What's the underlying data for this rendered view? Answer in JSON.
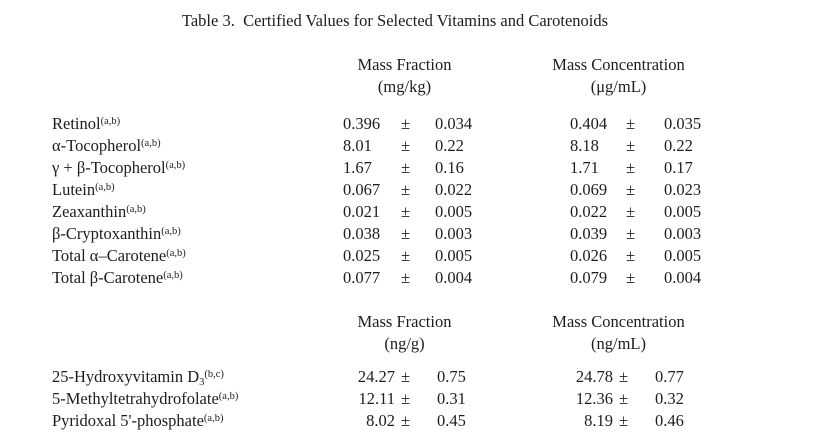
{
  "title": "Table 3.  Certified Values for Selected Vitamins and Carotenoids",
  "symbols": {
    "plus_minus": "±"
  },
  "text_color": "#1d1d1d",
  "background_color": "#ffffff",
  "sections": [
    {
      "headers": [
        {
          "line1": "Mass Fraction",
          "line2": "(mg/kg)"
        },
        {
          "line1": "Mass Concentration",
          "line2": "(μg/mL)"
        }
      ],
      "rows": [
        {
          "label": "Retinol",
          "sub": "",
          "sup": "(a,b)",
          "v1": "0.396",
          "u1": "0.034",
          "v2": "0.404",
          "u2": "0.035"
        },
        {
          "label": "α-Tocopherol",
          "sub": "",
          "sup": "(a,b)",
          "v1": "8.01",
          "u1": "0.22",
          "v2": "8.18",
          "u2": "0.22"
        },
        {
          "label": "γ + β-Tocopherol",
          "sub": "",
          "sup": "(a,b)",
          "v1": "1.67",
          "u1": "0.16",
          "v2": "1.71",
          "u2": "0.17"
        },
        {
          "label": "Lutein",
          "sub": "",
          "sup": "(a,b)",
          "v1": "0.067",
          "u1": "0.022",
          "v2": "0.069",
          "u2": "0.023"
        },
        {
          "label": "Zeaxanthin",
          "sub": "",
          "sup": "(a,b)",
          "v1": "0.021",
          "u1": "0.005",
          "v2": "0.022",
          "u2": "0.005"
        },
        {
          "label": "β-Cryptoxanthin",
          "sub": "",
          "sup": "(a,b)",
          "v1": "0.038",
          "u1": "0.003",
          "v2": "0.039",
          "u2": "0.003"
        },
        {
          "label": "Total α–Carotene",
          "sub": "",
          "sup": "(a,b)",
          "v1": "0.025",
          "u1": "0.005",
          "v2": "0.026",
          "u2": "0.005"
        },
        {
          "label": "Total β-Carotene",
          "sub": "",
          "sup": "(a,b)",
          "v1": "0.077",
          "u1": "0.004",
          "v2": "0.079",
          "u2": "0.004"
        }
      ]
    },
    {
      "headers": [
        {
          "line1": "Mass Fraction",
          "line2": "(ng/g)"
        },
        {
          "line1": "Mass Concentration",
          "line2": "(ng/mL)"
        }
      ],
      "rows": [
        {
          "label": "25-Hydroxyvitamin D",
          "sub": "3",
          "sup": "(b,c)",
          "v1": "24.27",
          "u1": "0.75",
          "v2": "24.78",
          "u2": "0.77"
        },
        {
          "label": "5-Methyltetrahydrofolate",
          "sub": "",
          "sup": "(a,b)",
          "v1": "12.11",
          "u1": "0.31",
          "v2": "12.36",
          "u2": "0.32"
        },
        {
          "label": "Pyridoxal 5'-phosphate",
          "sub": "",
          "sup": "(a,b)",
          "v1": "8.02",
          "u1": "0.45",
          "v2": "8.19",
          "u2": "0.46"
        }
      ]
    }
  ]
}
